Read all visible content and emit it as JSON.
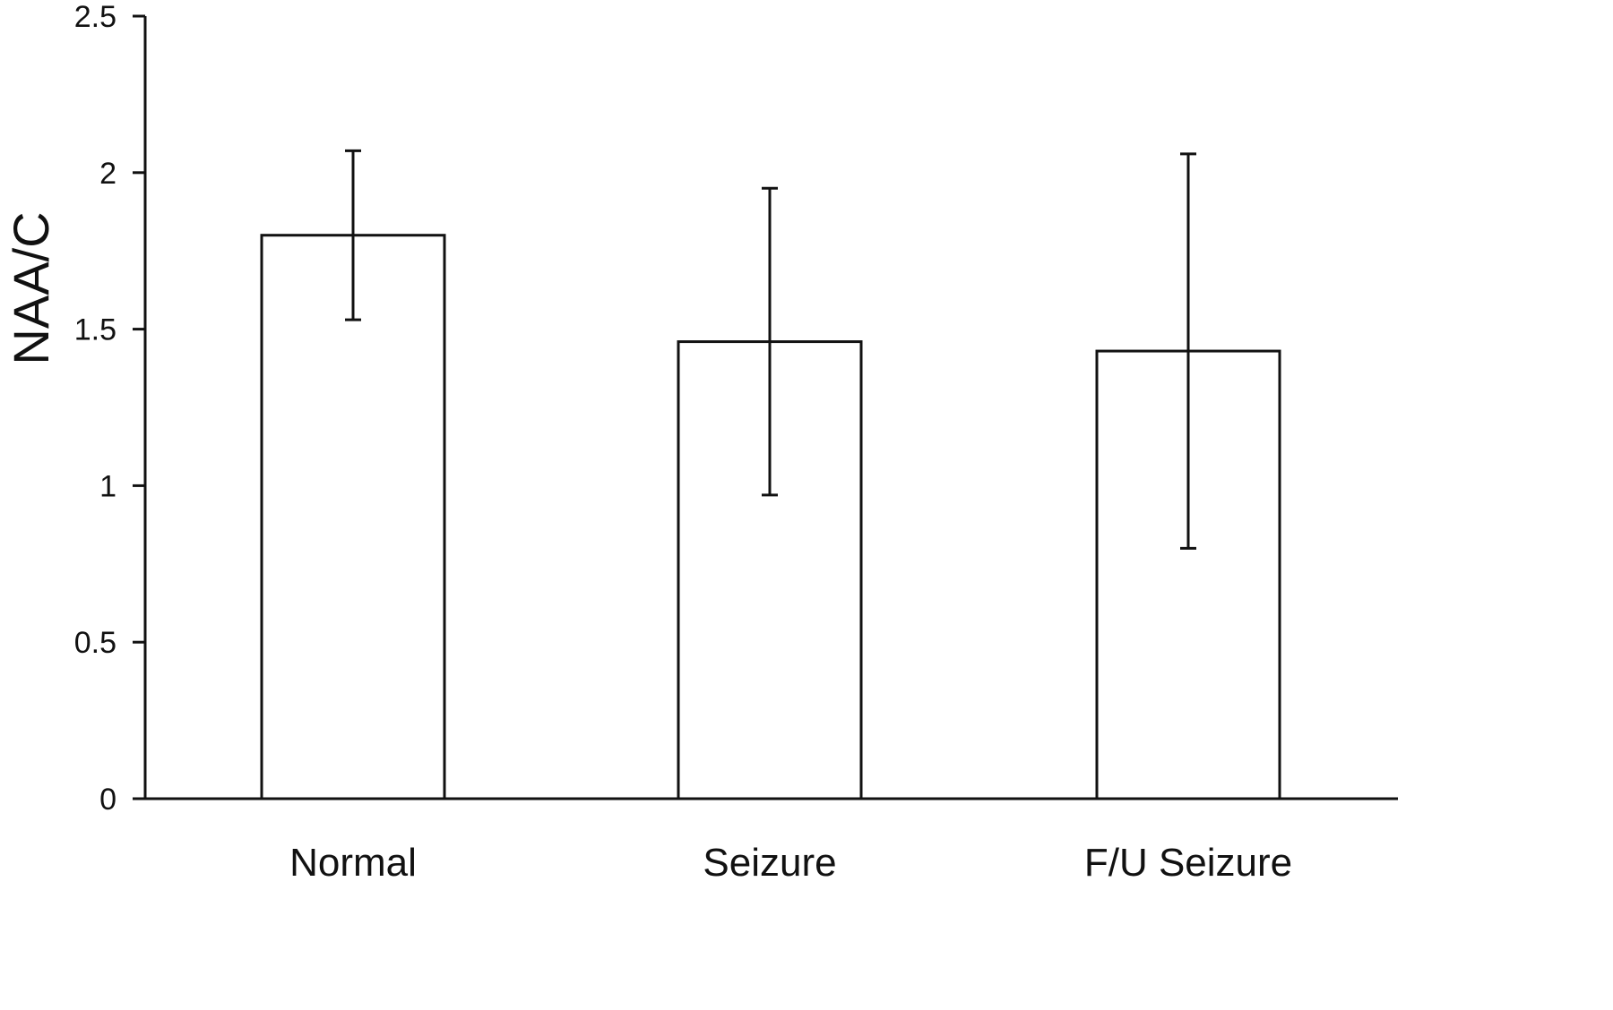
{
  "chart_data": {
    "type": "bar",
    "categories": [
      "Normal",
      "Seizure",
      "F/U Seizure"
    ],
    "values": [
      1.8,
      1.46,
      1.43
    ],
    "error_low": [
      1.53,
      0.97,
      0.8
    ],
    "error_high": [
      2.07,
      1.95,
      2.06
    ],
    "ylabel": "NAA/C",
    "xlabel": "",
    "title": "",
    "ylim": [
      0,
      2.5
    ],
    "yticks": [
      0,
      0.5,
      1,
      1.5,
      2,
      2.5
    ],
    "ytick_labels": [
      "0",
      "0.5",
      "1",
      "1.5",
      "2",
      "2.5"
    ],
    "grid": false,
    "colors": {
      "bar_fill": "#ffffff",
      "bar_stroke": "#111111"
    }
  }
}
